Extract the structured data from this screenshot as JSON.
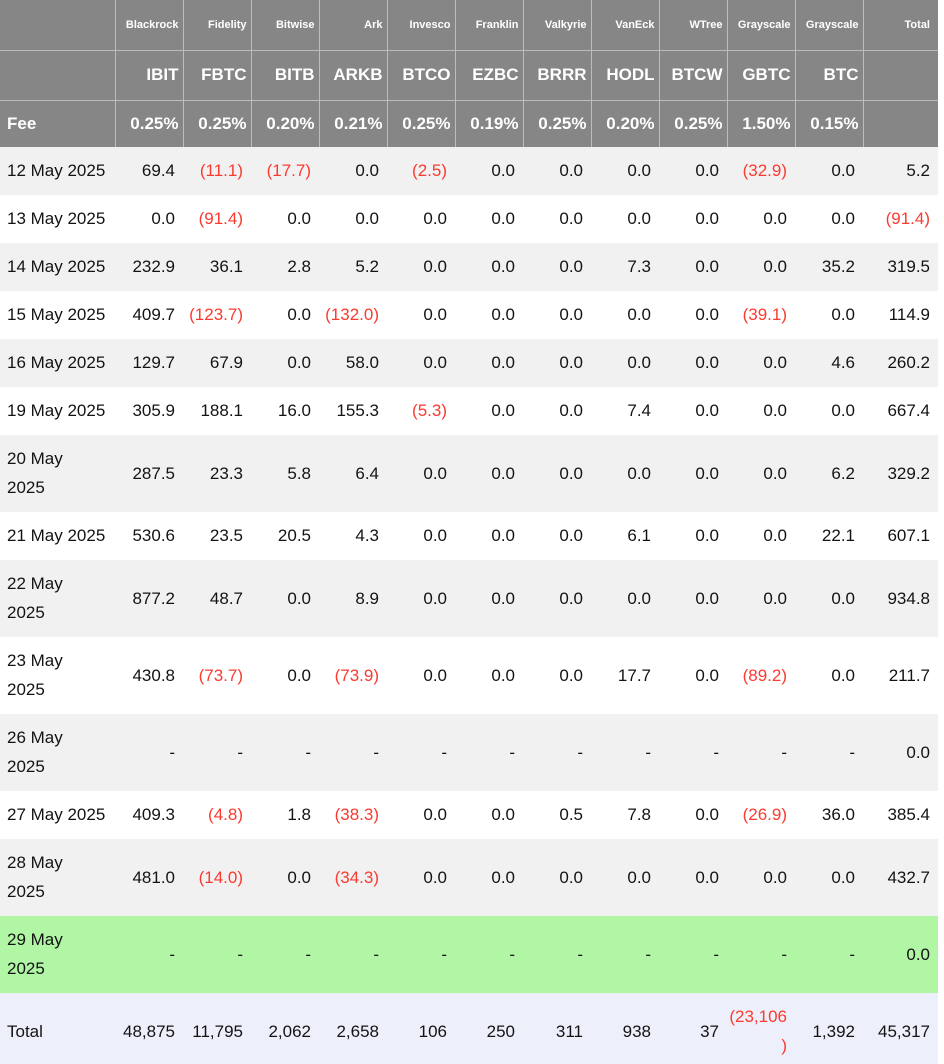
{
  "colors": {
    "header_bg": "#868686",
    "header_line": "#bcbcbc",
    "header_text": "#ffffff",
    "row_alt_bg": "#f1f1f2",
    "row_bg": "#ffffff",
    "green_row_bg": "#b0f6a5",
    "total_row_bg": "#edf0fa",
    "negative": "#fb3a30",
    "text": "#131313"
  },
  "chart_data": {
    "type": "table",
    "total_header": "Total",
    "fee_label": "Fee",
    "columns": [
      {
        "firm": "Blackrock",
        "ticker": "IBIT",
        "fee": "0.25%"
      },
      {
        "firm": "Fidelity",
        "ticker": "FBTC",
        "fee": "0.25%"
      },
      {
        "firm": "Bitwise",
        "ticker": "BITB",
        "fee": "0.20%"
      },
      {
        "firm": "Ark",
        "ticker": "ARKB",
        "fee": "0.21%"
      },
      {
        "firm": "Invesco",
        "ticker": "BTCO",
        "fee": "0.25%"
      },
      {
        "firm": "Franklin",
        "ticker": "EZBC",
        "fee": "0.19%"
      },
      {
        "firm": "Valkyrie",
        "ticker": "BRRR",
        "fee": "0.25%"
      },
      {
        "firm": "VanEck",
        "ticker": "HODL",
        "fee": "0.20%"
      },
      {
        "firm": "WTree",
        "ticker": "BTCW",
        "fee": "0.25%"
      },
      {
        "firm": "Grayscale",
        "ticker": "GBTC",
        "fee": "1.50%"
      },
      {
        "firm": "Grayscale",
        "ticker": "BTC",
        "fee": "0.15%"
      }
    ],
    "rows": [
      {
        "date": "12 May 2025",
        "values": [
          "69.4",
          "(11.1)",
          "(17.7)",
          "0.0",
          "(2.5)",
          "0.0",
          "0.0",
          "0.0",
          "0.0",
          "(32.9)",
          "0.0"
        ],
        "total": "5.2"
      },
      {
        "date": "13 May 2025",
        "values": [
          "0.0",
          "(91.4)",
          "0.0",
          "0.0",
          "0.0",
          "0.0",
          "0.0",
          "0.0",
          "0.0",
          "0.0",
          "0.0"
        ],
        "total": "(91.4)"
      },
      {
        "date": "14 May 2025",
        "values": [
          "232.9",
          "36.1",
          "2.8",
          "5.2",
          "0.0",
          "0.0",
          "0.0",
          "7.3",
          "0.0",
          "0.0",
          "35.2"
        ],
        "total": "319.5"
      },
      {
        "date": "15 May 2025",
        "values": [
          "409.7",
          "(123.7)",
          "0.0",
          "(132.0)",
          "0.0",
          "0.0",
          "0.0",
          "0.0",
          "0.0",
          "(39.1)",
          "0.0"
        ],
        "total": "114.9"
      },
      {
        "date": "16 May 2025",
        "values": [
          "129.7",
          "67.9",
          "0.0",
          "58.0",
          "0.0",
          "0.0",
          "0.0",
          "0.0",
          "0.0",
          "0.0",
          "4.6"
        ],
        "total": "260.2"
      },
      {
        "date": "19 May 2025",
        "values": [
          "305.9",
          "188.1",
          "16.0",
          "155.3",
          "(5.3)",
          "0.0",
          "0.0",
          "7.4",
          "0.0",
          "0.0",
          "0.0"
        ],
        "total": "667.4"
      },
      {
        "date": "20 May\n2025",
        "values": [
          "287.5",
          "23.3",
          "5.8",
          "6.4",
          "0.0",
          "0.0",
          "0.0",
          "0.0",
          "0.0",
          "0.0",
          "6.2"
        ],
        "total": "329.2"
      },
      {
        "date": "21 May 2025",
        "values": [
          "530.6",
          "23.5",
          "20.5",
          "4.3",
          "0.0",
          "0.0",
          "0.0",
          "6.1",
          "0.0",
          "0.0",
          "22.1"
        ],
        "total": "607.1"
      },
      {
        "date": "22 May\n2025",
        "values": [
          "877.2",
          "48.7",
          "0.0",
          "8.9",
          "0.0",
          "0.0",
          "0.0",
          "0.0",
          "0.0",
          "0.0",
          "0.0"
        ],
        "total": "934.8"
      },
      {
        "date": "23 May\n2025",
        "values": [
          "430.8",
          "(73.7)",
          "0.0",
          "(73.9)",
          "0.0",
          "0.0",
          "0.0",
          "17.7",
          "0.0",
          "(89.2)",
          "0.0"
        ],
        "total": "211.7"
      },
      {
        "date": "26 May\n2025",
        "values": [
          "-",
          "-",
          "-",
          "-",
          "-",
          "-",
          "-",
          "-",
          "-",
          "-",
          "-"
        ],
        "total": "0.0"
      },
      {
        "date": "27 May 2025",
        "values": [
          "409.3",
          "(4.8)",
          "1.8",
          "(38.3)",
          "0.0",
          "0.0",
          "0.5",
          "7.8",
          "0.0",
          "(26.9)",
          "36.0"
        ],
        "total": "385.4"
      },
      {
        "date": "28 May\n2025",
        "values": [
          "481.0",
          "(14.0)",
          "0.0",
          "(34.3)",
          "0.0",
          "0.0",
          "0.0",
          "0.0",
          "0.0",
          "0.0",
          "0.0"
        ],
        "total": "432.7"
      },
      {
        "date": "29 May\n2025",
        "values": [
          "-",
          "-",
          "-",
          "-",
          "-",
          "-",
          "-",
          "-",
          "-",
          "-",
          "-"
        ],
        "total": "0.0",
        "highlight": "green"
      }
    ],
    "total_row": {
      "label": "Total",
      "values": [
        "48,875",
        "11,795",
        "2,062",
        "2,658",
        "106",
        "250",
        "311",
        "938",
        "37",
        "(23,106)",
        "1,392"
      ],
      "total": "45,317"
    }
  }
}
